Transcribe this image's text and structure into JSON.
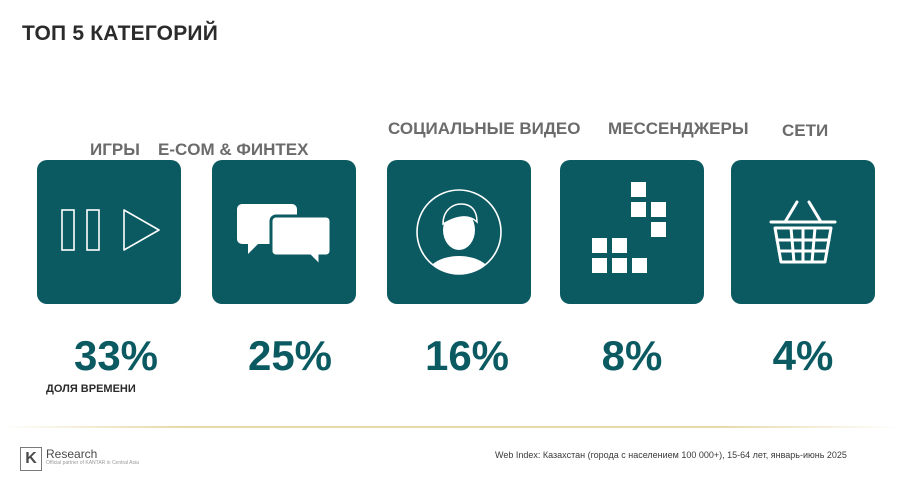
{
  "title": "ТОП 5 КАТЕГОРИЙ",
  "categories": [
    {
      "label": "ИГРЫ",
      "percent": "33%",
      "icon": "play-icon"
    },
    {
      "label": "E-COM & ФИНТЕХ",
      "percent": "25%",
      "icon": "chat-bubbles-icon"
    },
    {
      "label": "СОЦИАЛЬНЫЕ ВИДЕО",
      "percent": "16%",
      "icon": "person-icon"
    },
    {
      "label": "МЕССЕНДЖЕРЫ",
      "percent": "8%",
      "icon": "blocks-icon"
    },
    {
      "label": "СЕТИ",
      "percent": "4%",
      "icon": "basket-icon"
    }
  ],
  "note": "ДОЛЯ ВРЕМЕНИ",
  "footer": {
    "logo_letter": "K",
    "logo_name": "Research",
    "logo_sub": "Official partner of KANTAR in Central Asia",
    "source_lead": "Web Index:",
    "source_text": "Казахстан (города с населением 100 000+), 15-64 лет, январь-июнь 2025"
  },
  "colors": {
    "accent": "#0b5a62",
    "title": "#2b2b2b",
    "label": "#6b6b6b"
  }
}
